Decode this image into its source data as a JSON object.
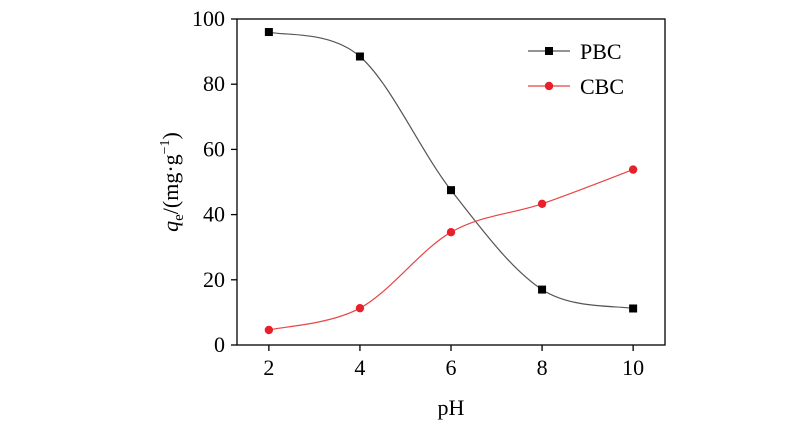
{
  "chart_data": {
    "type": "line",
    "x": [
      2,
      4,
      6,
      8,
      10
    ],
    "series": [
      {
        "name": "PBC",
        "values": [
          96,
          88.5,
          47.5,
          17,
          11.2
        ],
        "color": "#555555",
        "marker": "square",
        "marker_color": "#000000"
      },
      {
        "name": "CBC",
        "values": [
          4.6,
          11.3,
          34.6,
          43.3,
          53.8
        ],
        "color": "#e84545",
        "marker": "circle",
        "marker_color": "#e8202a"
      }
    ],
    "title": "",
    "xlabel": "pH",
    "ylabel": {
      "q": "q",
      "sub": "e",
      "rest": "/(mg·g",
      "sup": "−1",
      "close": ")"
    },
    "xlim": [
      1.3,
      10.7
    ],
    "ylim": [
      0,
      100
    ],
    "xticks": [
      "2",
      "4",
      "6",
      "8",
      "10"
    ],
    "yticks": [
      "0",
      "20",
      "40",
      "60",
      "80",
      "100"
    ],
    "grid": false,
    "legend_position": "top-right"
  }
}
